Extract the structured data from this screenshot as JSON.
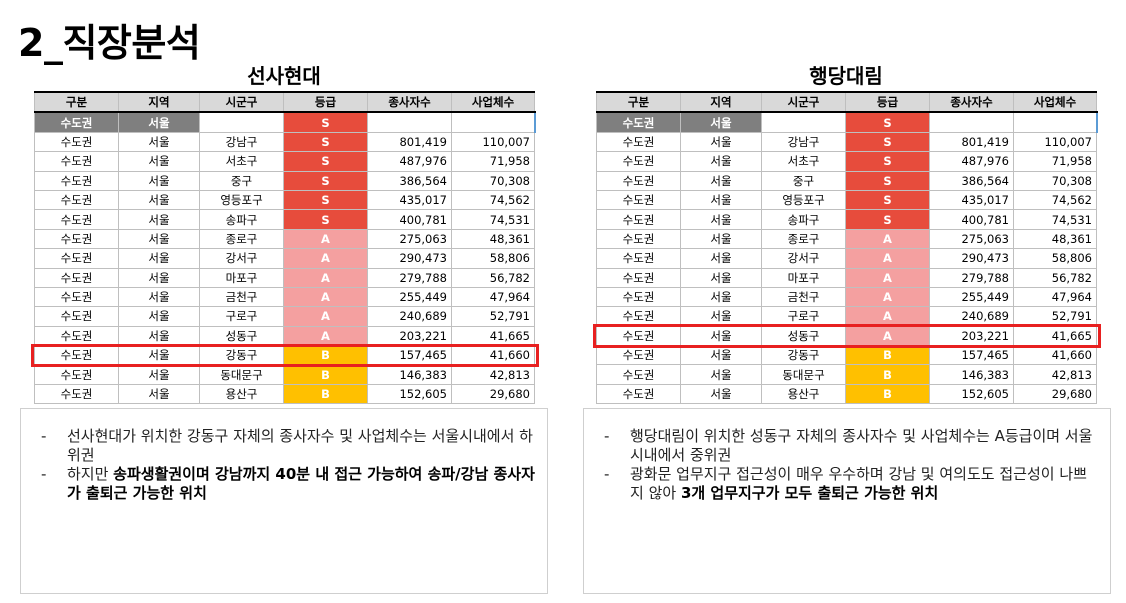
{
  "title": "2_직장분석",
  "headers": [
    "구분",
    "지역",
    "시군구",
    "등급",
    "종사자수",
    "사업체수"
  ],
  "head_row": {
    "category": "수도권",
    "region": "서울",
    "grade": "S"
  },
  "rows": [
    {
      "category": "수도권",
      "region": "서울",
      "district": "강남구",
      "grade": "S",
      "employees": "801,419",
      "businesses": "110,007"
    },
    {
      "category": "수도권",
      "region": "서울",
      "district": "서초구",
      "grade": "S",
      "employees": "487,976",
      "businesses": "71,958"
    },
    {
      "category": "수도권",
      "region": "서울",
      "district": "중구",
      "grade": "S",
      "employees": "386,564",
      "businesses": "70,308"
    },
    {
      "category": "수도권",
      "region": "서울",
      "district": "영등포구",
      "grade": "S",
      "employees": "435,017",
      "businesses": "74,562"
    },
    {
      "category": "수도권",
      "region": "서울",
      "district": "송파구",
      "grade": "S",
      "employees": "400,781",
      "businesses": "74,531"
    },
    {
      "category": "수도권",
      "region": "서울",
      "district": "종로구",
      "grade": "A",
      "employees": "275,063",
      "businesses": "48,361"
    },
    {
      "category": "수도권",
      "region": "서울",
      "district": "강서구",
      "grade": "A",
      "employees": "290,473",
      "businesses": "58,806"
    },
    {
      "category": "수도권",
      "region": "서울",
      "district": "마포구",
      "grade": "A",
      "employees": "279,788",
      "businesses": "56,782"
    },
    {
      "category": "수도권",
      "region": "서울",
      "district": "금천구",
      "grade": "A",
      "employees": "255,449",
      "businesses": "47,964"
    },
    {
      "category": "수도권",
      "region": "서울",
      "district": "구로구",
      "grade": "A",
      "employees": "240,689",
      "businesses": "52,791"
    },
    {
      "category": "수도권",
      "region": "서울",
      "district": "성동구",
      "grade": "A",
      "employees": "203,221",
      "businesses": "41,665"
    },
    {
      "category": "수도권",
      "region": "서울",
      "district": "강동구",
      "grade": "B",
      "employees": "157,465",
      "businesses": "41,660"
    },
    {
      "category": "수도권",
      "region": "서울",
      "district": "동대문구",
      "grade": "B",
      "employees": "146,383",
      "businesses": "42,813"
    },
    {
      "category": "수도권",
      "region": "서울",
      "district": "용산구",
      "grade": "B",
      "employees": "152,605",
      "businesses": "29,680"
    }
  ],
  "colors": {
    "grade_S": "#e74c3c",
    "grade_A": "#f4a0a0",
    "grade_B": "#ffc000",
    "highlight": "#e82020",
    "head_row": "#7f7f7f"
  },
  "panels": [
    {
      "title": "선사현대",
      "highlight_row": 11,
      "notes": [
        [
          {
            "text": "선사현대가 위치한 강동구 자체의 종사자수 및 사업체수는 서울시내에서 하위권",
            "bold": false
          }
        ],
        [
          {
            "text": "하지만 ",
            "bold": false
          },
          {
            "text": "송파생활권이며 강남까지 40분 내 접근 가능하여 송파/강남 종사자가 출퇴근 가능한 위치",
            "bold": true
          }
        ]
      ]
    },
    {
      "title": "행당대림",
      "highlight_row": 10,
      "notes": [
        [
          {
            "text": "행당대림이 위치한 성동구 자체의 종사자수 및 사업체수는 A등급이며 서울시내에서 중위권",
            "bold": false
          }
        ],
        [
          {
            "text": "광화문 업무지구 접근성이 매우 우수하며 강남 및 여의도도 접근성이 나쁘지 않아 ",
            "bold": false
          },
          {
            "text": "3개 업무지구가 모두 출퇴근 가능한 위치",
            "bold": true
          }
        ]
      ]
    }
  ]
}
